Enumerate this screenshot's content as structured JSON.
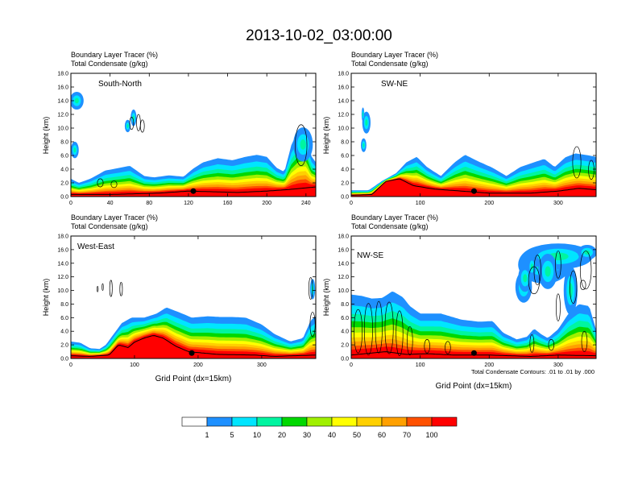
{
  "title": "2013-10-02_03:00:00",
  "ylabel": "Height (km)",
  "xlabel": "Grid Point (dx=15km)",
  "var_line1": "Boundary Layer Tracer   (%)",
  "var_line2": "Total Condensate   (g/kg)",
  "contour_note": "Total Condensate Contours: .01 to .01 by .000",
  "chart_data": [
    {
      "type": "heatmap",
      "name": "South-North",
      "xlim": [
        0,
        250
      ],
      "ylim": [
        0,
        18
      ],
      "xticks": [
        0,
        40,
        80,
        120,
        160,
        200,
        240
      ],
      "yticks": [
        "0.0",
        "2.0",
        "4.0",
        "6.0",
        "8.0",
        "10.0",
        "12.0",
        "14.0",
        "16.0",
        "18.0"
      ],
      "grid": false,
      "marker_x": 125,
      "tops": [
        [
          0,
          2.6
        ],
        [
          8,
          2.0
        ],
        [
          20,
          2.6
        ],
        [
          35,
          3.8
        ],
        [
          50,
          4.2
        ],
        [
          60,
          4.5
        ],
        [
          75,
          3.0
        ],
        [
          85,
          2.8
        ],
        [
          100,
          3.1
        ],
        [
          115,
          2.9
        ],
        [
          125,
          4.1
        ],
        [
          135,
          5.0
        ],
        [
          150,
          5.6
        ],
        [
          165,
          5.3
        ],
        [
          178,
          5.8
        ],
        [
          190,
          6.1
        ],
        [
          200,
          5.8
        ],
        [
          210,
          4.2
        ],
        [
          218,
          3.6
        ],
        [
          225,
          7.5
        ],
        [
          232,
          9.6
        ],
        [
          240,
          9.8
        ],
        [
          245,
          6.0
        ],
        [
          250,
          5.0
        ]
      ],
      "terrain": [
        [
          0,
          0.3
        ],
        [
          40,
          0.3
        ],
        [
          90,
          0.5
        ],
        [
          120,
          0.8
        ],
        [
          170,
          0.6
        ],
        [
          200,
          0.8
        ],
        [
          220,
          1.0
        ],
        [
          250,
          1.4
        ]
      ],
      "blobs": [
        [
          6,
          14.0,
          7,
          1.3
        ],
        [
          4,
          6.8,
          4,
          1.2
        ],
        [
          58,
          10.3,
          3,
          0.9
        ],
        [
          64,
          11.5,
          3,
          1.2
        ],
        [
          237,
          7.6,
          10,
          2.5
        ]
      ],
      "cloud_contours": [
        [
          62,
          10.7,
          2,
          0.9
        ],
        [
          69,
          10.8,
          2,
          1.2
        ],
        [
          73,
          10.3,
          2,
          0.9
        ],
        [
          235,
          7.5,
          6,
          3.0
        ],
        [
          30,
          2.0,
          3,
          0.6
        ],
        [
          44,
          1.8,
          3,
          0.5
        ]
      ]
    },
    {
      "type": "heatmap",
      "name": "SW-NE",
      "xlim": [
        0,
        355
      ],
      "ylim": [
        0,
        18
      ],
      "xticks": [
        0,
        100,
        200,
        300
      ],
      "yticks": [
        "0.0",
        "2.0",
        "4.0",
        "6.0",
        "8.0",
        "10.0",
        "12.0",
        "14.0",
        "16.0",
        "18.0"
      ],
      "grid": false,
      "marker_x": 178,
      "tops": [
        [
          0,
          0.9
        ],
        [
          25,
          0.9
        ],
        [
          45,
          2.3
        ],
        [
          65,
          3.4
        ],
        [
          80,
          5.0
        ],
        [
          95,
          5.8
        ],
        [
          110,
          4.3
        ],
        [
          130,
          3.0
        ],
        [
          150,
          5.0
        ],
        [
          165,
          6.1
        ],
        [
          185,
          5.1
        ],
        [
          205,
          4.2
        ],
        [
          225,
          3.0
        ],
        [
          245,
          4.3
        ],
        [
          265,
          5.0
        ],
        [
          280,
          5.5
        ],
        [
          295,
          4.3
        ],
        [
          310,
          5.7
        ],
        [
          325,
          6.3
        ],
        [
          345,
          6.0
        ],
        [
          355,
          5.8
        ]
      ],
      "terrain": [
        [
          0,
          0.2
        ],
        [
          30,
          0.3
        ],
        [
          50,
          2.2
        ],
        [
          70,
          2.6
        ],
        [
          90,
          1.6
        ],
        [
          120,
          1.1
        ],
        [
          200,
          0.5
        ],
        [
          260,
          0.5
        ],
        [
          300,
          0.8
        ],
        [
          330,
          1.2
        ],
        [
          355,
          1.0
        ]
      ],
      "blobs": [
        [
          22,
          10.8,
          6,
          1.6
        ],
        [
          18,
          7.5,
          4,
          1.0
        ],
        [
          17,
          12.0,
          2,
          1.0
        ]
      ],
      "cloud_contours": [
        [
          327,
          5.0,
          6,
          2.3
        ],
        [
          348,
          3.9,
          4,
          1.4
        ]
      ]
    },
    {
      "type": "heatmap",
      "name": "West-East",
      "xlim": [
        0,
        385
      ],
      "ylim": [
        0,
        18
      ],
      "xticks": [
        0,
        100,
        200,
        300
      ],
      "yticks": [
        "0.0",
        "2.0",
        "4.0",
        "6.0",
        "8.0",
        "10.0",
        "12.0",
        "14.0",
        "16.0",
        "18.0"
      ],
      "grid": false,
      "marker_x": 190,
      "tops": [
        [
          0,
          2.5
        ],
        [
          15,
          2.3
        ],
        [
          30,
          1.5
        ],
        [
          45,
          1.4
        ],
        [
          55,
          2.0
        ],
        [
          65,
          3.3
        ],
        [
          80,
          5.2
        ],
        [
          95,
          6.0
        ],
        [
          115,
          6.0
        ],
        [
          135,
          6.6
        ],
        [
          150,
          7.5
        ],
        [
          170,
          6.8
        ],
        [
          190,
          6.0
        ],
        [
          215,
          6.2
        ],
        [
          235,
          6.1
        ],
        [
          255,
          6.1
        ],
        [
          275,
          6.0
        ],
        [
          300,
          5.0
        ],
        [
          320,
          3.6
        ],
        [
          345,
          2.5
        ],
        [
          365,
          3.0
        ],
        [
          377,
          5.6
        ],
        [
          385,
          6.2
        ]
      ],
      "terrain": [
        [
          0,
          0.4
        ],
        [
          30,
          0.3
        ],
        [
          60,
          0.5
        ],
        [
          75,
          2.0
        ],
        [
          90,
          1.6
        ],
        [
          100,
          2.4
        ],
        [
          115,
          3.0
        ],
        [
          130,
          3.4
        ],
        [
          145,
          3.0
        ],
        [
          165,
          1.8
        ],
        [
          185,
          1.0
        ],
        [
          230,
          0.6
        ],
        [
          290,
          0.5
        ],
        [
          320,
          0.3
        ],
        [
          350,
          0.4
        ],
        [
          385,
          0.5
        ]
      ],
      "blobs": [
        [
          380,
          10.2,
          4,
          1.5
        ]
      ],
      "cloud_contours": [
        [
          42,
          10.2,
          1,
          0.4
        ],
        [
          50,
          10.5,
          1,
          0.5
        ],
        [
          63,
          10.3,
          2,
          1.2
        ],
        [
          79,
          10.2,
          2,
          1.0
        ],
        [
          377,
          10.3,
          3,
          1.6
        ],
        [
          380,
          5.0,
          4,
          1.8
        ]
      ]
    },
    {
      "type": "heatmap",
      "name": "NW-SE",
      "xlim": [
        0,
        355
      ],
      "ylim": [
        0,
        18
      ],
      "xticks": [
        0,
        100,
        200,
        300
      ],
      "yticks": [
        "0.0",
        "2.0",
        "4.0",
        "6.0",
        "8.0",
        "10.0",
        "12.0",
        "14.0",
        "16.0",
        "18.0"
      ],
      "grid": false,
      "marker_x": 178,
      "tops": [
        [
          0,
          9.4
        ],
        [
          15,
          9.2
        ],
        [
          30,
          8.8
        ],
        [
          45,
          8.9
        ],
        [
          60,
          9.9
        ],
        [
          75,
          9.0
        ],
        [
          85,
          7.7
        ],
        [
          100,
          6.6
        ],
        [
          130,
          6.6
        ],
        [
          160,
          5.7
        ],
        [
          185,
          5.4
        ],
        [
          205,
          5.5
        ],
        [
          220,
          3.8
        ],
        [
          240,
          2.8
        ],
        [
          255,
          3.2
        ],
        [
          265,
          4.4
        ],
        [
          275,
          3.6
        ],
        [
          285,
          3.0
        ],
        [
          300,
          4.3
        ],
        [
          315,
          6.6
        ],
        [
          330,
          8.0
        ],
        [
          345,
          7.7
        ],
        [
          355,
          4.2
        ]
      ],
      "terrain": [
        [
          0,
          0.5
        ],
        [
          50,
          1.0
        ],
        [
          80,
          0.6
        ],
        [
          110,
          0.7
        ],
        [
          150,
          0.5
        ],
        [
          200,
          0.5
        ],
        [
          260,
          0.3
        ],
        [
          300,
          0.5
        ],
        [
          355,
          0.4
        ]
      ],
      "blobs": [
        [
          280,
          13.8,
          38,
          2.8
        ],
        [
          300,
          15.0,
          50,
          1.9
        ],
        [
          318,
          10.0,
          10,
          3.6
        ],
        [
          250,
          10.5,
          12,
          2.3
        ],
        [
          252,
          11.8,
          10,
          2.0
        ],
        [
          285,
          12.8,
          14,
          2.6
        ],
        [
          342,
          15.6,
          14,
          1.1
        ],
        [
          262,
          13.5,
          6,
          1.5
        ]
      ],
      "cloud_contours": [
        [
          10,
          4.0,
          6,
          3.2
        ],
        [
          25,
          4.3,
          6,
          3.8
        ],
        [
          40,
          4.6,
          5,
          3.8
        ],
        [
          55,
          4.5,
          6,
          3.8
        ],
        [
          70,
          3.7,
          5,
          3.3
        ],
        [
          85,
          2.6,
          4,
          2.1
        ],
        [
          110,
          1.8,
          4,
          1.0
        ],
        [
          140,
          1.6,
          4,
          0.9
        ],
        [
          265,
          11.5,
          8,
          2.0
        ],
        [
          270,
          13.0,
          5,
          2.2
        ],
        [
          300,
          13.8,
          4,
          2.0
        ],
        [
          322,
          10.5,
          5,
          2.4
        ],
        [
          340,
          13.0,
          8,
          2.8
        ],
        [
          336,
          10.8,
          4,
          0.7
        ],
        [
          300,
          7.5,
          3,
          2.0
        ],
        [
          262,
          2.2,
          3,
          1.3
        ],
        [
          290,
          2.0,
          4,
          0.8
        ],
        [
          338,
          2.5,
          4,
          1.5
        ]
      ]
    }
  ],
  "colorbar": {
    "labels": [
      "1",
      "5",
      "10",
      "20",
      "30",
      "40",
      "50",
      "60",
      "70",
      "100"
    ],
    "colors": [
      "#ffffff",
      "#1e90ff",
      "#00e5ff",
      "#00f5a0",
      "#00d800",
      "#a0f000",
      "#ffff00",
      "#ffd000",
      "#ffa000",
      "#ff5000",
      "#ff0000"
    ]
  }
}
